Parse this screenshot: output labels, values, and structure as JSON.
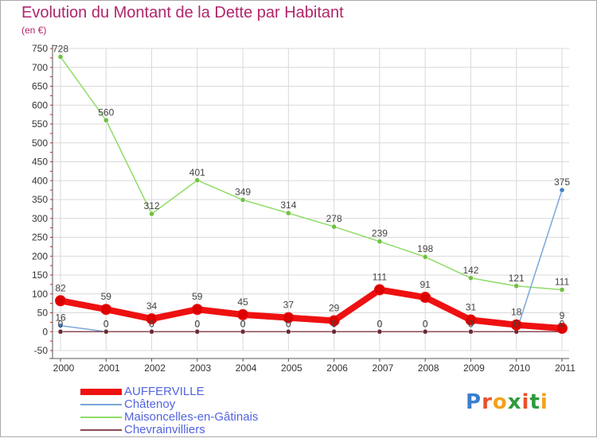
{
  "title": "Evolution du Montant de la Dette par Habitant",
  "subtitle": "(en €)",
  "logo_text": "Proxiti",
  "colors": {
    "title": "#b0256a",
    "legend_text": "#5264e0",
    "grid": "#d9d9d9"
  },
  "chart_data": {
    "type": "line",
    "title": "Evolution du Montant de la Dette par Habitant",
    "subtitle": "(en €)",
    "x": [
      "2000",
      "2001",
      "2002",
      "2003",
      "2004",
      "2005",
      "2006",
      "2007",
      "2008",
      "2009",
      "2010",
      "2011"
    ],
    "ylim": [
      -50,
      750
    ],
    "yticks": [
      -50,
      0,
      50,
      100,
      150,
      200,
      250,
      300,
      350,
      400,
      450,
      500,
      550,
      600,
      650,
      700,
      750
    ],
    "grid": true,
    "legend_position": "bottom-left",
    "series": [
      {
        "name": "Maisoncelles-en-Gâtinais",
        "color": "#8fdc68",
        "marker": "#6ec03e",
        "values": [
          728,
          560,
          312,
          401,
          349,
          314,
          278,
          239,
          198,
          142,
          121,
          111
        ],
        "labels": [
          "728",
          "560",
          "312",
          "401",
          "349",
          "314",
          "278",
          "239",
          "198",
          "142",
          "121",
          "111"
        ]
      },
      {
        "name": "Châtenoy",
        "color": "#7aa7d8",
        "marker": "#3f7fc9",
        "values": [
          16,
          0,
          0,
          0,
          0,
          0,
          0,
          0,
          0,
          0,
          0,
          375
        ],
        "labels": [
          "16",
          "0",
          "0",
          "0",
          "0",
          "0",
          "0",
          "0",
          "0",
          "0",
          "0",
          "375"
        ]
      },
      {
        "name": "Chevrainvilliers",
        "color": "#8a4a55",
        "marker": "#6a2a35",
        "values": [
          0,
          0,
          0,
          0,
          0,
          0,
          0,
          0,
          0,
          0,
          0,
          0
        ],
        "labels": [
          "0",
          "0",
          "0",
          "0",
          "0",
          "0",
          "0",
          "0",
          "0",
          "0",
          "0",
          "0"
        ]
      },
      {
        "name": "AUFFERVILLE",
        "color": "#ee1111",
        "marker": "#dd0000",
        "values": [
          82,
          59,
          34,
          59,
          45,
          37,
          29,
          111,
          91,
          31,
          18,
          9
        ],
        "labels": [
          "82",
          "59",
          "34",
          "59",
          "45",
          "37",
          "29",
          "111",
          "91",
          "31",
          "18",
          "9"
        ]
      }
    ],
    "legend": [
      "AUFFERVILLE",
      "Châtenoy",
      "Maisoncelles-en-Gâtinais",
      "Chevrainvilliers"
    ]
  }
}
